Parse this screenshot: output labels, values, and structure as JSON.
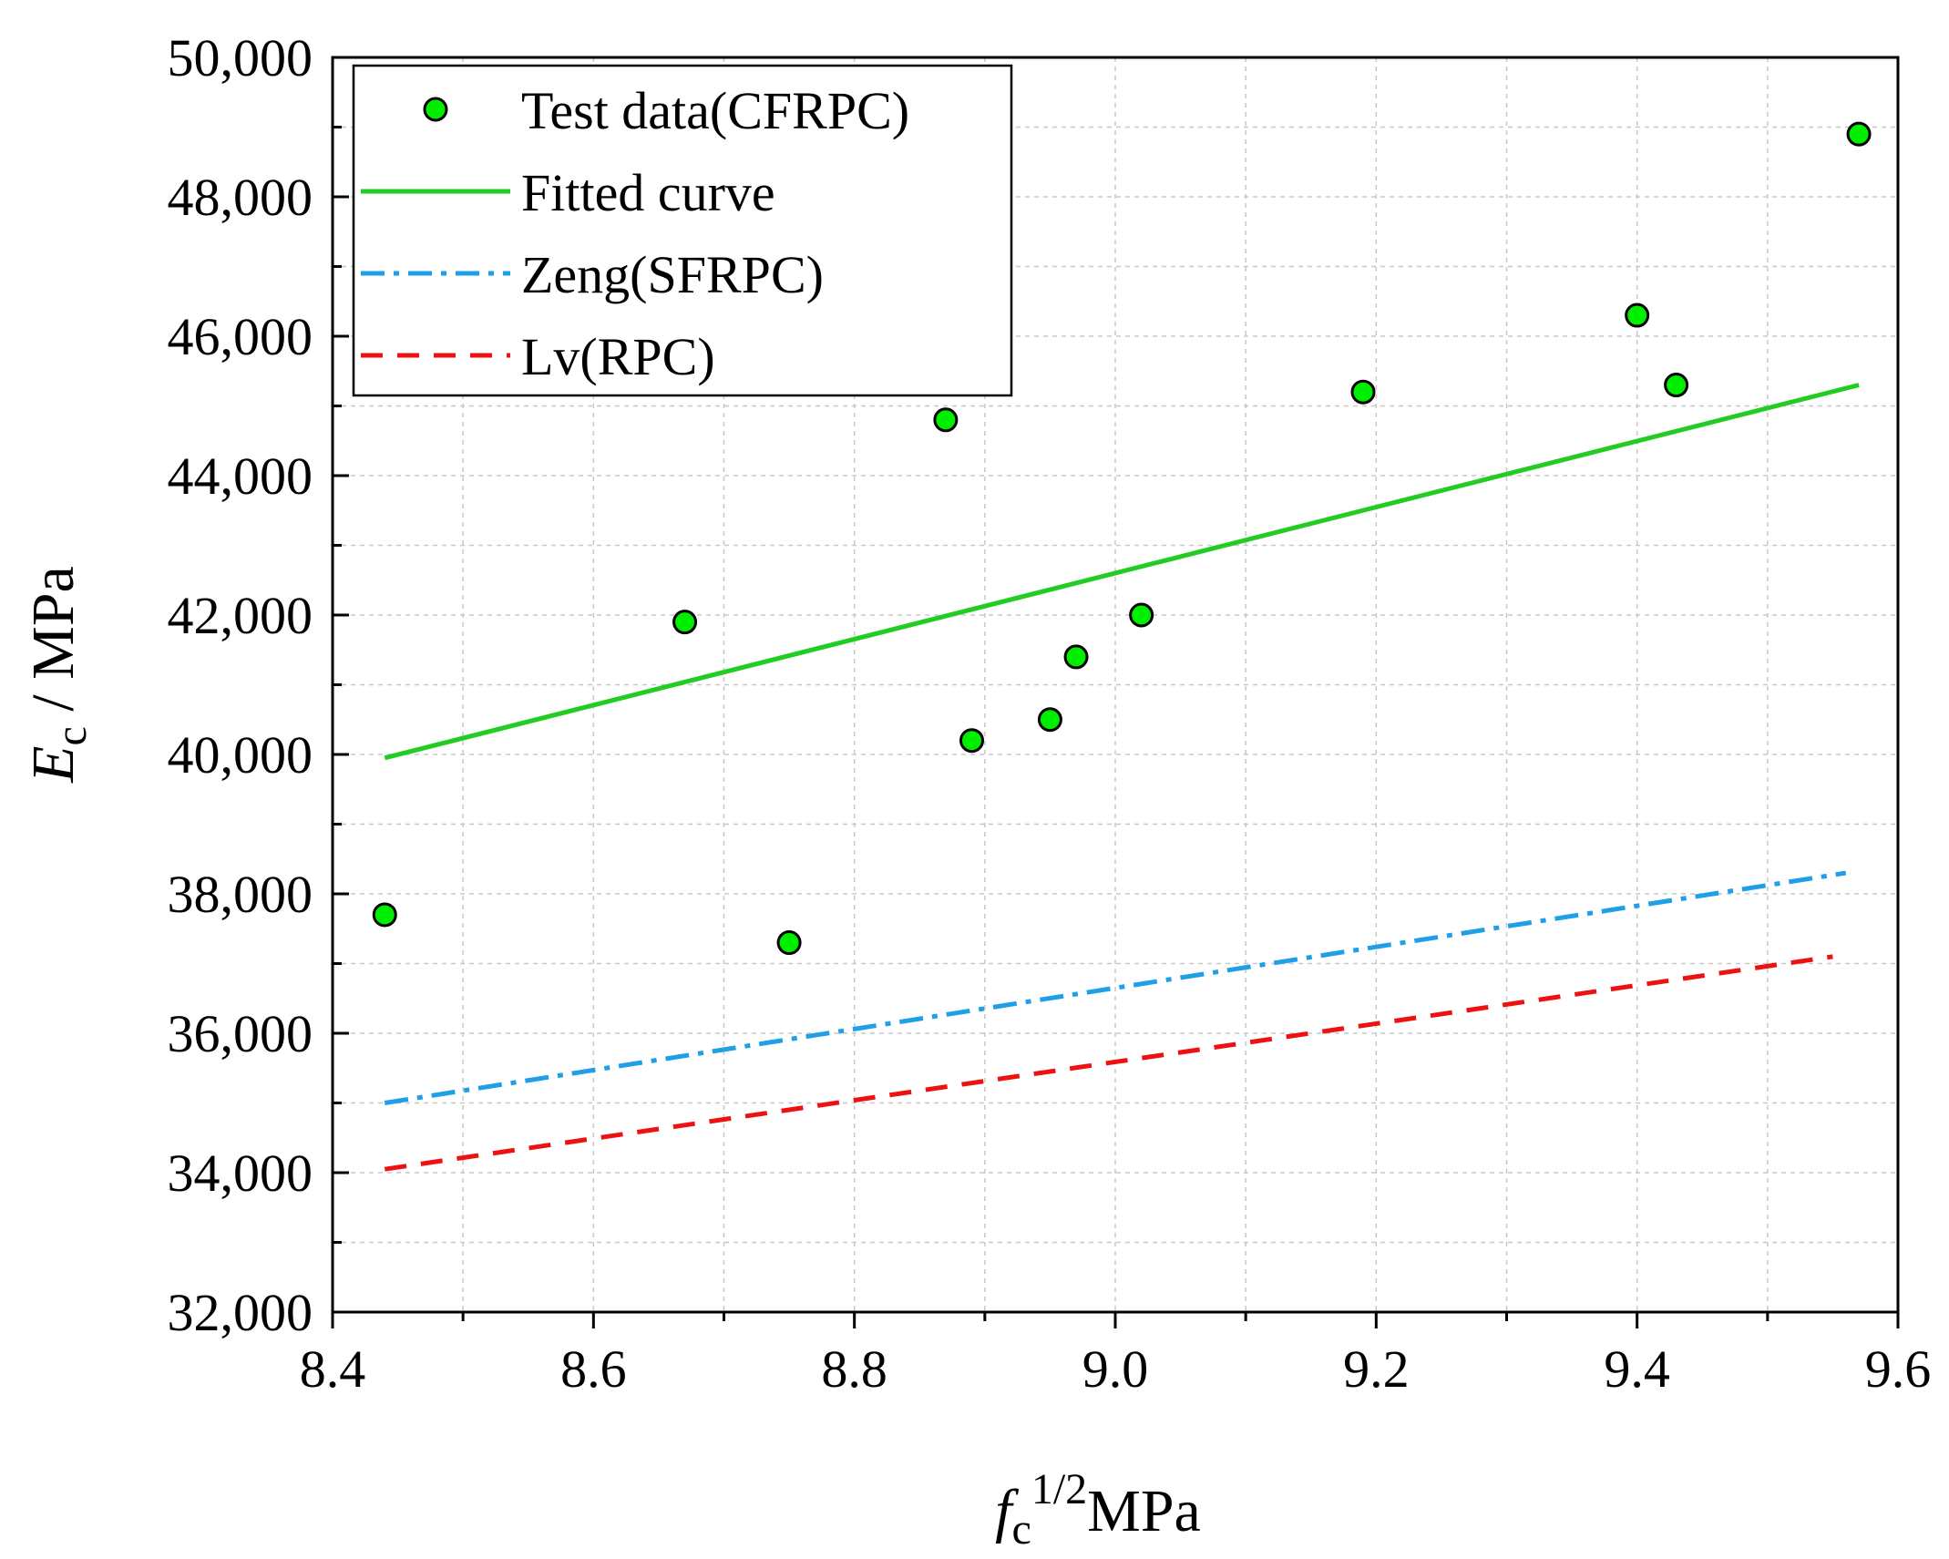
{
  "chart_data": {
    "type": "scatter",
    "x_label": {
      "main": "f",
      "sub": "c",
      "sup": "1/2",
      "unit": "MPa"
    },
    "y_label": {
      "main": "E",
      "sub": "c",
      "unit": " / MPa"
    },
    "xlim": [
      8.4,
      9.6
    ],
    "ylim": [
      32000,
      50000
    ],
    "x_ticks": [
      "8.4",
      "8.6",
      "8.8",
      "9.0",
      "9.2",
      "9.4",
      "9.6"
    ],
    "y_ticks": [
      "32,000",
      "34,000",
      "36,000",
      "38,000",
      "40,000",
      "42,000",
      "44,000",
      "46,000",
      "48,000",
      "50,000"
    ],
    "grid": true,
    "legend_position": "top-left",
    "series": [
      {
        "name": "Test data(CFRPC)",
        "kind": "scatter",
        "color": "#00ee00",
        "x": [
          8.44,
          8.67,
          8.75,
          8.87,
          8.89,
          8.95,
          8.97,
          9.02,
          9.19,
          9.4,
          9.43,
          9.57
        ],
        "y": [
          37700,
          41900,
          37300,
          44800,
          40200,
          40500,
          41400,
          42000,
          45200,
          46300,
          45300,
          48900
        ]
      },
      {
        "name": "Fitted curve",
        "kind": "line",
        "style": "solid",
        "color": "#22cc22",
        "x": [
          8.44,
          9.57
        ],
        "y": [
          39950,
          45300
        ]
      },
      {
        "name": "Zeng(SFRPC)",
        "kind": "line",
        "style": "dashdot",
        "color": "#1e9fe8",
        "x": [
          8.44,
          9.56
        ],
        "y": [
          35000,
          38300
        ]
      },
      {
        "name": "Lv(RPC)",
        "kind": "line",
        "style": "dash",
        "color": "#ee1111",
        "x": [
          8.44,
          9.55
        ],
        "y": [
          34050,
          37100
        ]
      }
    ]
  }
}
